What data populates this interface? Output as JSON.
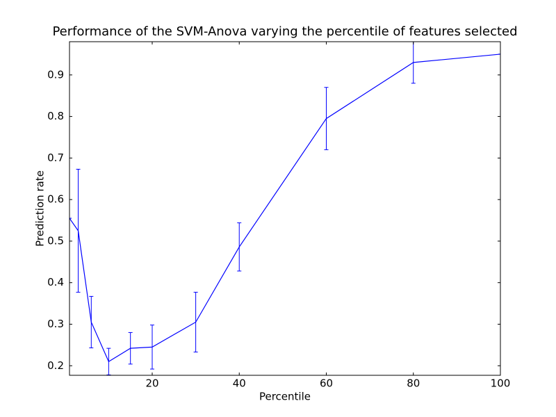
{
  "chart_data": {
    "type": "errorbar_line",
    "title": "Performance of the SVM-Anova varying the percentile of features selected",
    "x_label": "Percentile",
    "y_label": "Prediction rate",
    "x": [
      1,
      3,
      6,
      10,
      15,
      20,
      30,
      40,
      60,
      80,
      100
    ],
    "series": [
      {
        "name": "SVM-Anova",
        "color": "#0000ff",
        "values": [
          0.555,
          0.525,
          0.305,
          0.21,
          0.242,
          0.245,
          0.305,
          0.486,
          0.795,
          0.93,
          0.95
        ],
        "errors": [
          0,
          0.148,
          0.062,
          0.032,
          0.038,
          0.053,
          0.072,
          0.058,
          0.075,
          0.05,
          0
        ]
      }
    ],
    "xlim": [
      1,
      100
    ],
    "xticks": [
      20,
      40,
      60,
      80,
      100
    ],
    "ylim": [
      0.177,
      0.98
    ],
    "yticks": [
      0.2,
      0.3,
      0.4,
      0.5,
      0.6,
      0.7,
      0.8,
      0.9
    ]
  }
}
